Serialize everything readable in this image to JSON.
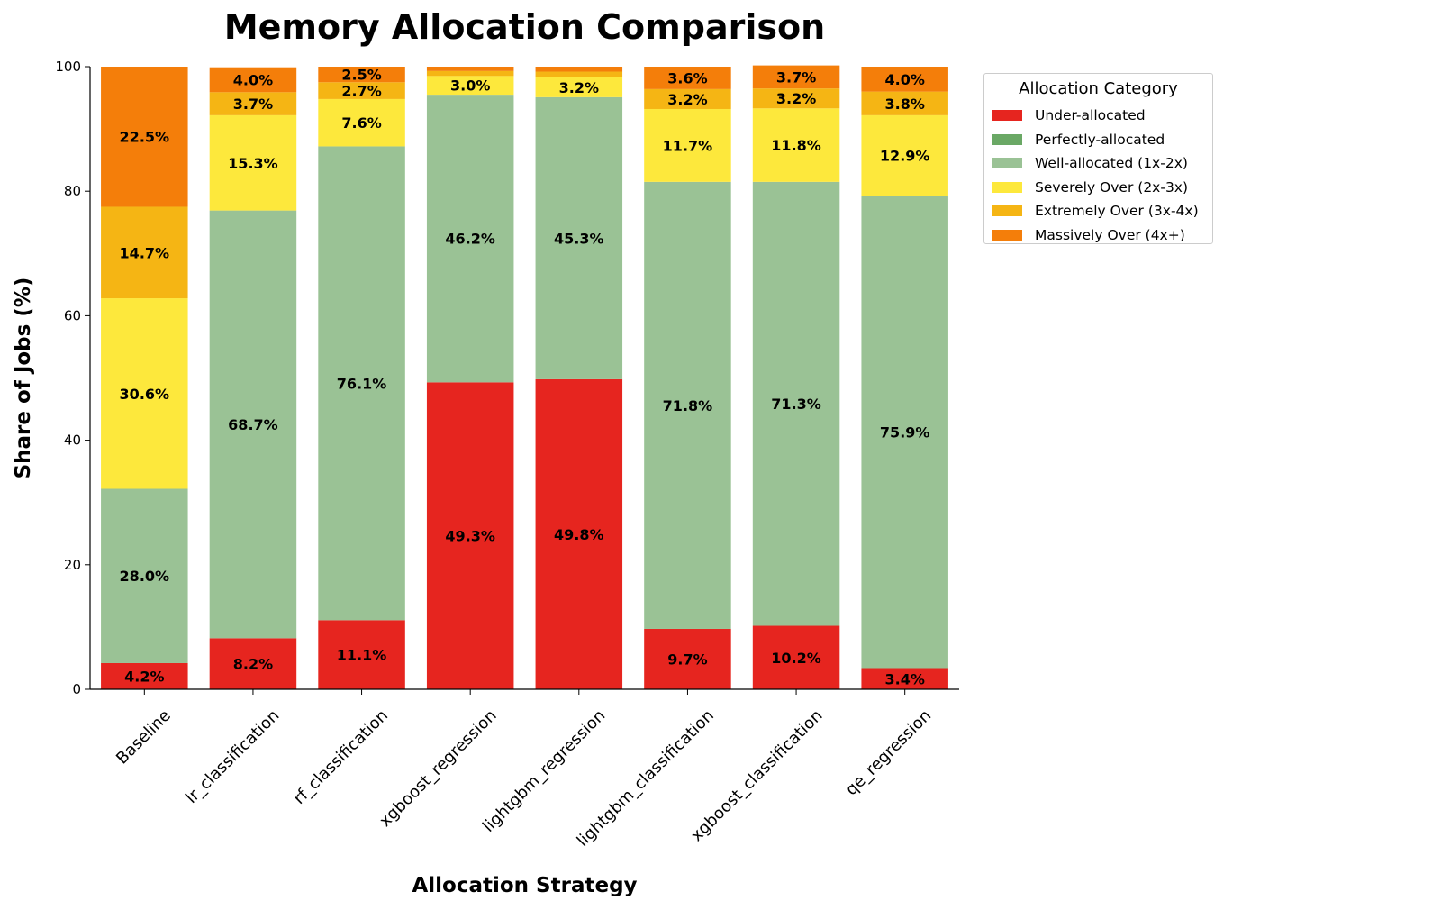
{
  "chart_data": {
    "type": "bar",
    "stacked": true,
    "title": "Memory Allocation Comparison",
    "xlabel": "Allocation Strategy",
    "ylabel": "Share of Jobs (%)",
    "ylim": [
      0,
      100
    ],
    "yticks": [
      0,
      20,
      40,
      60,
      80,
      100
    ],
    "categories": [
      "Baseline",
      "lr_classification",
      "rf_classification",
      "xgboost_regression",
      "lightgbm_regression",
      "lightgbm_classification",
      "xgboost_classification",
      "qe_regression"
    ],
    "legend": {
      "title": "Allocation Category",
      "position": "upper-right-outside"
    },
    "series": [
      {
        "name": "Under-allocated",
        "color": "#e6251f",
        "values": [
          4.2,
          8.2,
          11.1,
          49.3,
          49.8,
          9.7,
          10.2,
          3.4
        ]
      },
      {
        "name": "Perfectly-allocated",
        "color": "#6aa865",
        "values": [
          0,
          0,
          0,
          0,
          0,
          0,
          0,
          0
        ]
      },
      {
        "name": "Well-allocated (1x-2x)",
        "color": "#9ac295",
        "values": [
          28.0,
          68.7,
          76.1,
          46.2,
          45.3,
          71.8,
          71.3,
          75.9
        ]
      },
      {
        "name": "Severely Over (2x-3x)",
        "color": "#fde83c",
        "values": [
          30.6,
          15.3,
          7.6,
          3.0,
          3.2,
          11.7,
          11.8,
          12.9
        ]
      },
      {
        "name": "Extremely Over (3x-4x)",
        "color": "#f5b514",
        "values": [
          14.7,
          3.7,
          2.7,
          0.8,
          0.9,
          3.2,
          3.2,
          3.8
        ]
      },
      {
        "name": "Massively Over (4x+)",
        "color": "#f47e0a",
        "values": [
          22.5,
          4.0,
          2.5,
          0.7,
          0.8,
          3.6,
          3.7,
          4.0
        ]
      }
    ],
    "data_labels": [
      [
        "4.2%",
        "",
        "28.0%",
        "30.6%",
        "14.7%",
        "22.5%"
      ],
      [
        "8.2%",
        "",
        "68.7%",
        "15.3%",
        "3.7%",
        "4.0%"
      ],
      [
        "11.1%",
        "",
        "76.1%",
        "7.6%",
        "2.7%",
        "2.5%"
      ],
      [
        "49.3%",
        "",
        "46.2%",
        "3.0%",
        "",
        ""
      ],
      [
        "49.8%",
        "",
        "45.3%",
        "3.2%",
        "",
        ""
      ],
      [
        "9.7%",
        "",
        "71.8%",
        "11.7%",
        "3.2%",
        "3.6%"
      ],
      [
        "10.2%",
        "",
        "71.3%",
        "11.8%",
        "3.2%",
        "3.7%"
      ],
      [
        "3.4%",
        "",
        "75.9%",
        "12.9%",
        "3.8%",
        "4.0%"
      ]
    ]
  }
}
